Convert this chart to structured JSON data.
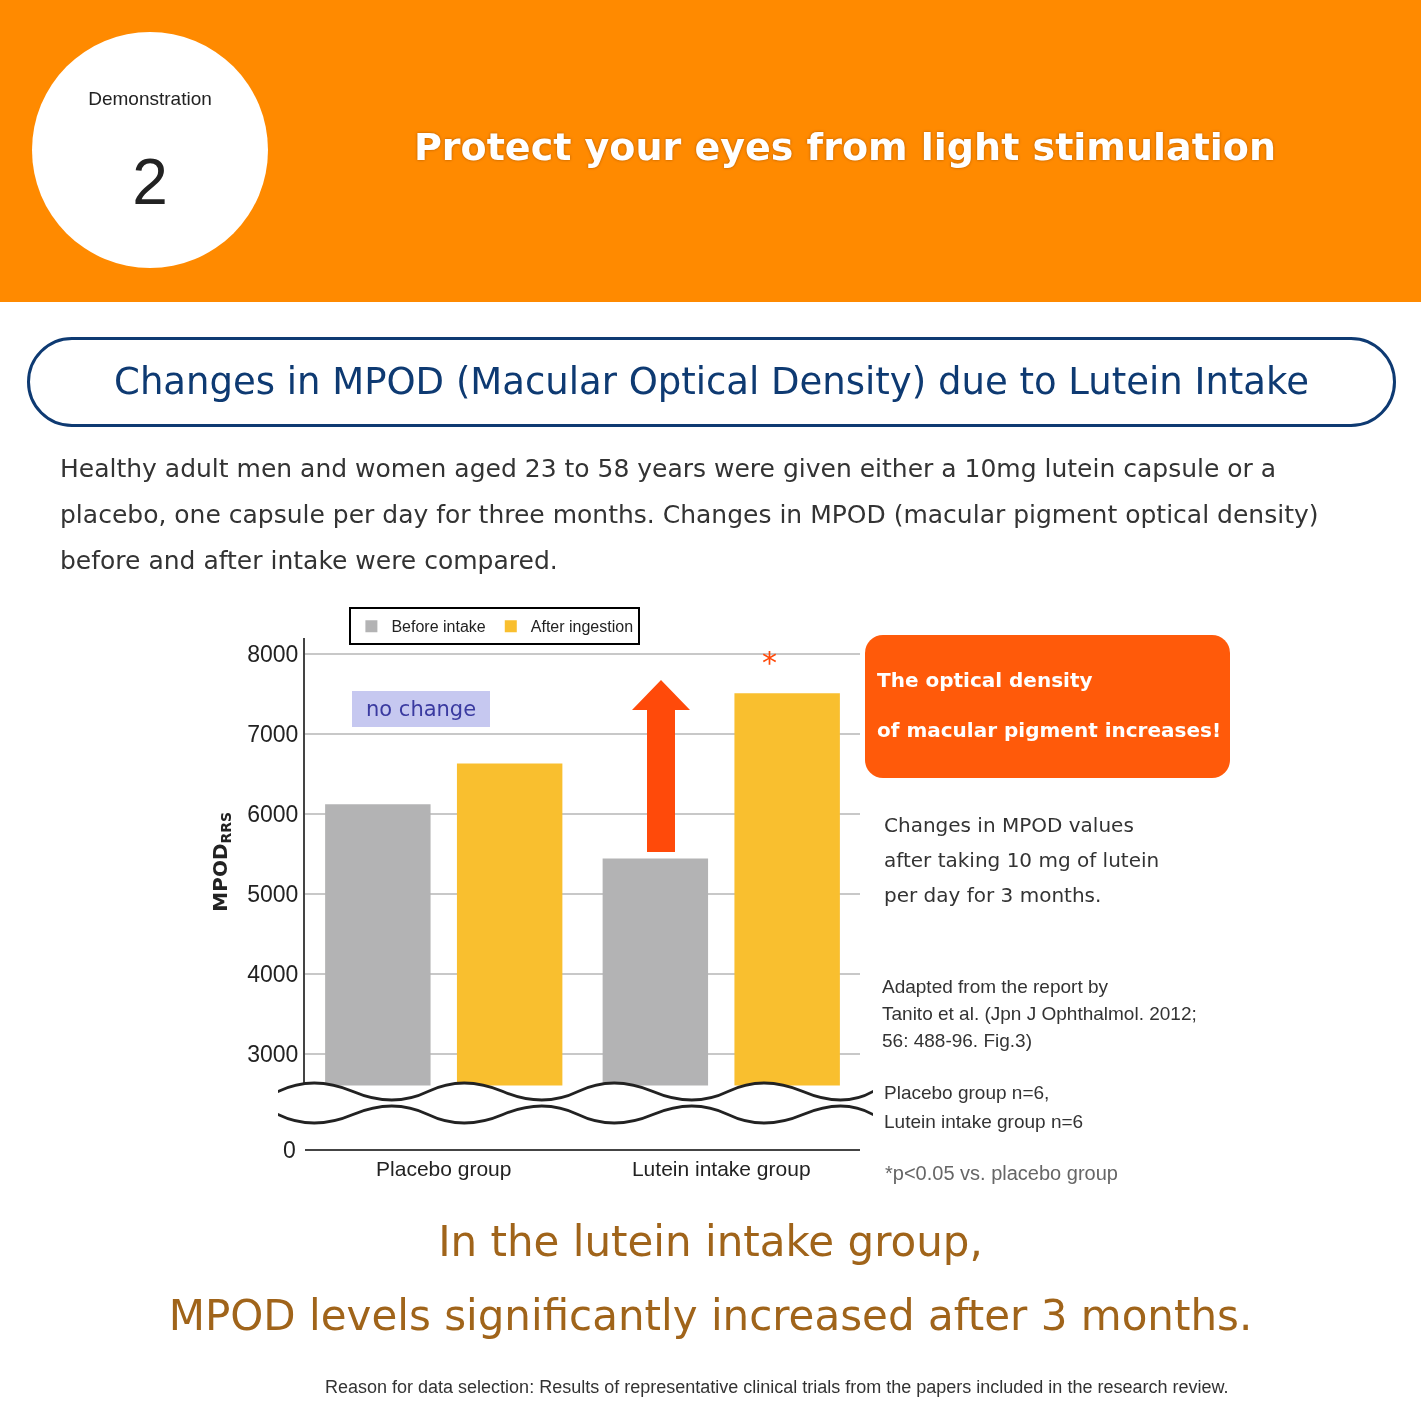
{
  "chart_data": {
    "type": "bar",
    "title": "Changes in MPOD (Macular Optical Density) due to Lutein Intake",
    "subtitle": "Healthy adult men and women aged 23 to 58 years were given either a 10mg lutein capsule or a placebo, one capsule per day for three months. Changes in MPOD (macular pigment optical density) before and after intake were compared.",
    "ylabel": "MPOD$_{RRS}$",
    "categories": [
      "Placebo group",
      "Lutein intake group"
    ],
    "series": [
      {
        "name": "Before intake",
        "color": "#b3b3b4",
        "values": [
          6120,
          5440
        ]
      },
      {
        "name": "After ingestion",
        "color": "#f9bf2f",
        "values": [
          6630,
          7510
        ]
      }
    ],
    "ylim": [
      2600,
      8200
    ],
    "yticks": [
      3000,
      4000,
      5000,
      6000,
      7000,
      8000
    ],
    "grid": "y",
    "legend": "top left",
    "annotations": [
      "Demonstration",
      "2",
      "Protect your eyes from light stimulation",
      "no change",
      "*",
      "The optical density\nof macular pigment increases!",
      "Changes in MPOD values\nafter taking 10 mg of lutein\nper day for 3 months.",
      "Adapted from the report by\nTanito et al. (Jpn J Ophthalmol. 2012;\n56: 488-96. Fig.3)",
      "Placebo group n=6,\nLutein intake group n=6",
      "*p<0.05 vs. placebo group",
      "In the lutein intake group,\nMPOD levels significantly increased after 3 months.",
      "Reason for data selection: Results of representative clinical trials from the papers included in the research review.",
      "0"
    ]
  }
}
